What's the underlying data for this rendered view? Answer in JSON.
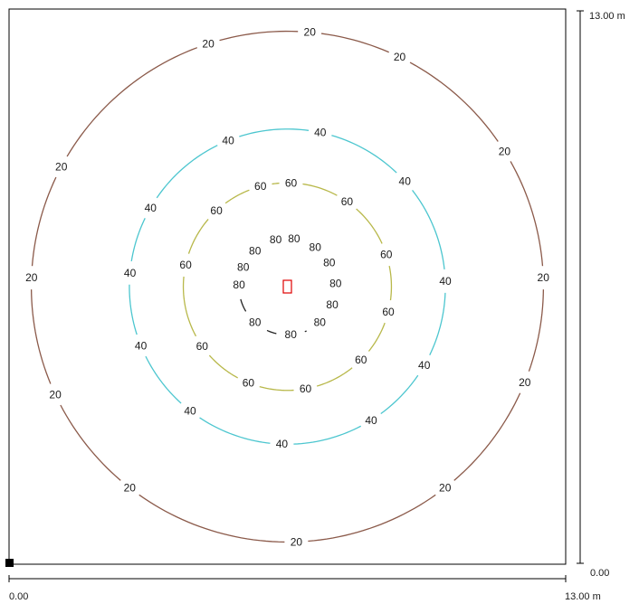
{
  "chart_data": {
    "type": "contour",
    "grid": false,
    "domain_m": {
      "x": [
        0,
        13
      ],
      "y": [
        0,
        13
      ]
    },
    "luminaire_position_m": [
      6.5,
      6.5
    ],
    "axes": {
      "x_min_label": "0.00",
      "x_max_label": "13.00 m",
      "y_min_label": "0.00",
      "y_max_label": "13.00 m"
    },
    "isolines": [
      {
        "value": 20,
        "label": "20",
        "color": "#8B5A4A",
        "radius_m": 5.98
      },
      {
        "value": 40,
        "label": "40",
        "color": "#4CC6CF",
        "radius_m": 3.69
      },
      {
        "value": 60,
        "label": "60",
        "color": "#B8B84A",
        "radius_m": 2.43
      },
      {
        "value": 80,
        "label": "80",
        "color": "#222222",
        "radius_m": 1.13
      }
    ]
  },
  "colors": {
    "frame": "#000000",
    "luminaire_marker": "#e00000",
    "origin_marker": "#000000"
  }
}
